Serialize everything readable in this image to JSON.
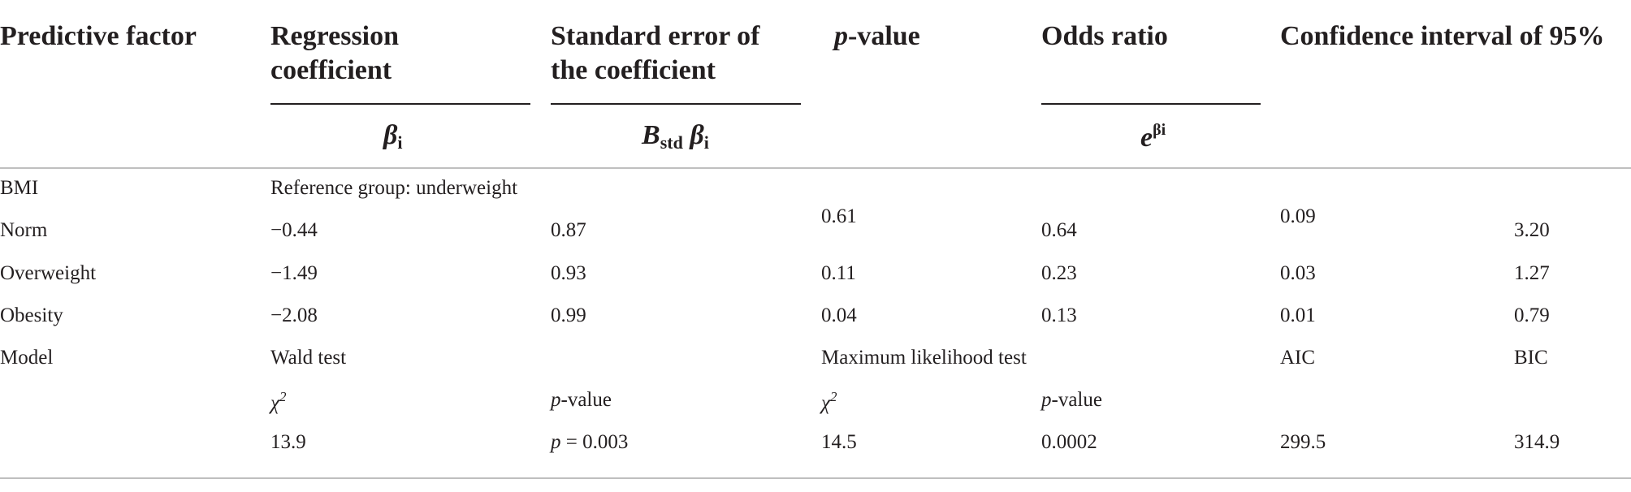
{
  "header": {
    "col1": "Predictive factor",
    "col2_line1": "Regression",
    "col2_line2": "coefficient",
    "col3_line1": "Standard error of",
    "col3_line2": "the coefficient",
    "col4_prefix": "p",
    "col4_suffix": "-value",
    "col5": "Odds ratio",
    "col6": "Confidence interval of 95%",
    "beta_symbol": "β",
    "beta_sub": "i",
    "bstd_symbol": "B",
    "bstd_sub": "std",
    "bstd_beta": "β",
    "bstd_beta_sub": "i",
    "e_symbol": "e",
    "e_sup": "βi"
  },
  "rows": {
    "bmi_label": "BMI",
    "reference": "Reference group: underweight",
    "norm": {
      "label": "Norm",
      "coef": "−0.44",
      "se": "0.87",
      "p": "0.61",
      "or": "0.64",
      "ci_low": "0.09",
      "ci_high": "3.20"
    },
    "overweight": {
      "label": "Overweight",
      "coef": "−1.49",
      "se": "0.93",
      "p": "0.11",
      "or": "0.23",
      "ci_low": "0.03",
      "ci_high": "1.27"
    },
    "obesity": {
      "label": "Obesity",
      "coef": "−2.08",
      "se": "0.99",
      "p": "0.04",
      "or": "0.13",
      "ci_low": "0.01",
      "ci_high": "0.79"
    }
  },
  "model": {
    "label": "Model",
    "wald": "Wald test",
    "ml": "Maximum likelihood test",
    "aic": "AIC",
    "bic": "BIC",
    "chi_symbol": "χ",
    "chi_sup": "2",
    "pval_p": "p",
    "pval_suffix": "-value",
    "wald_chi": "13.9",
    "wald_p_prefix": "p",
    "wald_p_rest": " = 0.003",
    "ml_chi": "14.5",
    "ml_p": "0.0002",
    "aic_value": "299.5",
    "bic_value": "314.9"
  },
  "colors": {
    "text": "#231f20",
    "rule": "#bfbfbf"
  }
}
